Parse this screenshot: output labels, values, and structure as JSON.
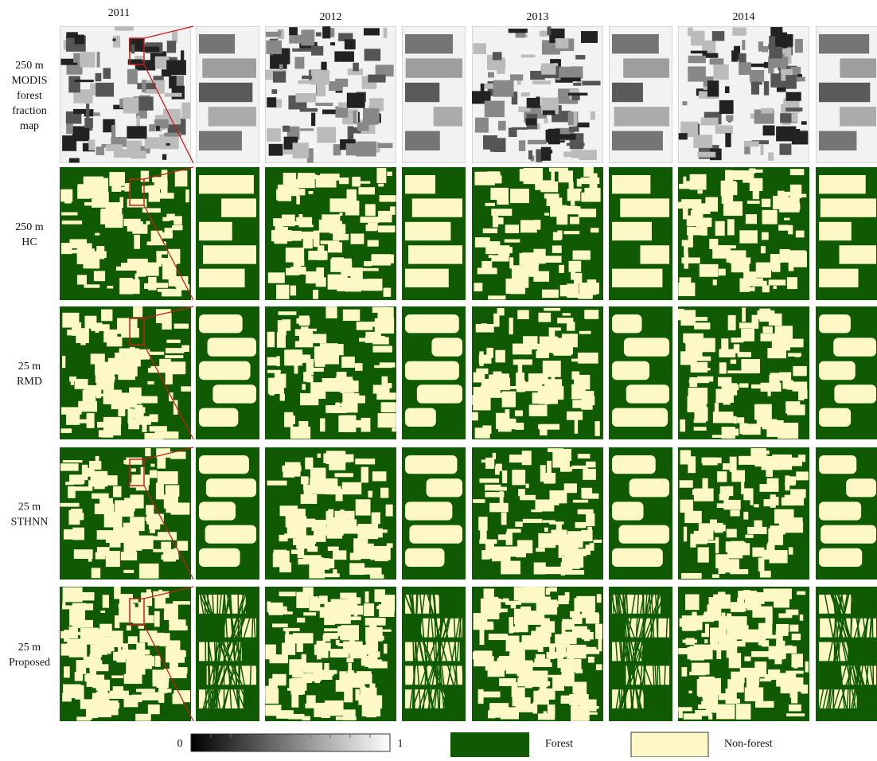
{
  "columns": [
    "2011",
    "2012",
    "2013",
    "2014"
  ],
  "rows": [
    {
      "label": [
        "250 m",
        "MODIS",
        "forest",
        "fraction",
        "map"
      ]
    },
    {
      "label": [
        "250 m",
        "HC"
      ]
    },
    {
      "label": [
        "25 m",
        "RMD"
      ]
    },
    {
      "label": [
        "25 m",
        "STHNN"
      ]
    },
    {
      "label": [
        "25 m",
        "Proposed"
      ]
    }
  ],
  "legend": {
    "scale_min": "0",
    "scale_max": "1",
    "forest": "Forest",
    "nonforest": "Non-forest"
  }
}
